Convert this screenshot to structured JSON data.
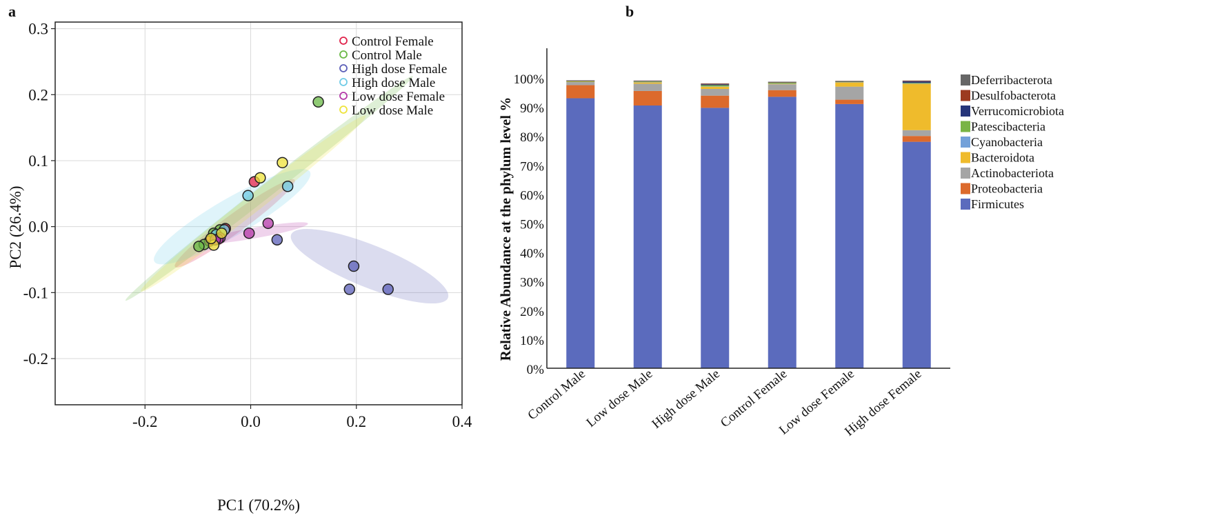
{
  "panels": {
    "a": "a",
    "b": "b"
  },
  "chart_data": [
    {
      "type": "scatter",
      "panel": "a",
      "xlabel": "PC1 (70.2%)",
      "ylabel": "PC2 (26.4%)",
      "xlim": [
        -0.37,
        0.4
      ],
      "ylim": [
        -0.27,
        0.31
      ],
      "xticks": [
        -0.2,
        0.0,
        0.2,
        0.4
      ],
      "xtick_labels": [
        "-0.2",
        "0.0",
        "0.2",
        "0.4"
      ],
      "yticks": [
        0.3,
        0.2,
        0.1,
        0.0,
        -0.1,
        -0.2
      ],
      "ytick_labels": [
        "0.3",
        "0.2",
        "0.1",
        "0.0",
        "-0.1",
        "-0.2"
      ],
      "grid": true,
      "legend_position": "top-right",
      "series": [
        {
          "name": "Control Female",
          "color": "#e0224a",
          "points": [
            [
              0.007,
              0.068
            ],
            [
              -0.048,
              -0.003
            ],
            [
              -0.078,
              -0.022
            ]
          ],
          "ellipse": {
            "cx": -0.03,
            "cy": 0.005,
            "rx": 0.14,
            "ry": 0.018,
            "angle": 36
          }
        },
        {
          "name": "Control Male",
          "color": "#6ab845",
          "points": [
            [
              0.128,
              0.189
            ],
            [
              -0.058,
              -0.005
            ],
            [
              -0.07,
              -0.01
            ],
            [
              -0.088,
              -0.027
            ],
            [
              -0.098,
              -0.03
            ]
          ],
          "ellipse": {
            "cx": 0.035,
            "cy": 0.058,
            "rx": 0.345,
            "ry": 0.013,
            "angle": 38
          }
        },
        {
          "name": "High dose Female",
          "color": "#5b5fb8",
          "points": [
            [
              0.195,
              -0.06
            ],
            [
              0.187,
              -0.095
            ],
            [
              0.26,
              -0.095
            ],
            [
              0.05,
              -0.02
            ]
          ],
          "ellipse": {
            "cx": 0.225,
            "cy": -0.06,
            "rx": 0.16,
            "ry": 0.04,
            "angle": -22
          }
        },
        {
          "name": "High dose Male",
          "color": "#6fcbe6",
          "points": [
            [
              0.07,
              0.061
            ],
            [
              -0.005,
              0.047
            ],
            [
              -0.05,
              -0.005
            ],
            [
              -0.065,
              -0.012
            ]
          ],
          "ellipse": {
            "cx": -0.035,
            "cy": 0.015,
            "rx": 0.17,
            "ry": 0.035,
            "angle": 30
          }
        },
        {
          "name": "Low dose Female",
          "color": "#b438a8",
          "points": [
            [
              0.033,
              0.005
            ],
            [
              -0.003,
              -0.01
            ],
            [
              -0.058,
              -0.017
            ],
            [
              -0.062,
              -0.019
            ],
            [
              -0.067,
              -0.02
            ]
          ],
          "ellipse": {
            "cx": 0.005,
            "cy": -0.01,
            "rx": 0.105,
            "ry": 0.01,
            "angle": 10
          }
        },
        {
          "name": "Low dose Male",
          "color": "#eee33a",
          "points": [
            [
              0.06,
              0.097
            ],
            [
              0.018,
              0.074
            ],
            [
              -0.07,
              -0.028
            ],
            [
              -0.075,
              -0.018
            ],
            [
              -0.055,
              -0.01
            ]
          ],
          "ellipse": {
            "cx": 0.005,
            "cy": 0.035,
            "rx": 0.27,
            "ry": 0.016,
            "angle": 38
          }
        }
      ]
    },
    {
      "type": "bar",
      "panel": "b",
      "stacked": true,
      "ylabel": "Relative Abundance at the phylum level %",
      "ylim": [
        0,
        100
      ],
      "yticks": [
        0,
        10,
        20,
        30,
        40,
        50,
        60,
        70,
        80,
        90,
        100
      ],
      "ytick_labels": [
        "0%",
        "10%",
        "20%",
        "30%",
        "40%",
        "50%",
        "60%",
        "70%",
        "80%",
        "90%",
        "100%"
      ],
      "categories": [
        "Control Male",
        "Low dose Male",
        "High dose Male",
        "Control Female",
        "Low dose Female",
        "High dose Female"
      ],
      "legend_position": "right",
      "series": [
        {
          "name": "Firmicutes",
          "color": "#5b6bbd",
          "values": [
            93.0,
            90.5,
            89.7,
            93.5,
            91.0,
            78.0
          ]
        },
        {
          "name": "Proteobacteria",
          "color": "#dc6a2c",
          "values": [
            4.5,
            5.0,
            4.2,
            2.3,
            1.5,
            2.0
          ]
        },
        {
          "name": "Actinobacteriota",
          "color": "#a5a5a5",
          "values": [
            1.1,
            2.5,
            2.3,
            2.0,
            4.5,
            2.0
          ]
        },
        {
          "name": "Bacteroidota",
          "color": "#efbb2c",
          "values": [
            0.1,
            0.5,
            0.8,
            0.2,
            1.5,
            16.0
          ]
        },
        {
          "name": "Cyanobacteria",
          "color": "#73a1d9",
          "values": [
            0.0,
            0.1,
            0.1,
            0.1,
            0.1,
            0.1
          ]
        },
        {
          "name": "Patescibacteria",
          "color": "#79b445",
          "values": [
            0.2,
            0.2,
            0.4,
            0.3,
            0.1,
            0.2
          ]
        },
        {
          "name": "Verrucomicrobiota",
          "color": "#26357a",
          "values": [
            0.1,
            0.1,
            0.3,
            0.1,
            0.1,
            0.5
          ]
        },
        {
          "name": "Desulfobacterota",
          "color": "#9c3a20",
          "values": [
            0.1,
            0.1,
            0.2,
            0.1,
            0.1,
            0.2
          ]
        },
        {
          "name": "Deferribacterota",
          "color": "#666666",
          "values": [
            0.1,
            0.1,
            0.1,
            0.1,
            0.1,
            0.1
          ]
        }
      ],
      "legend_order": [
        "Deferribacterota",
        "Desulfobacterota",
        "Verrucomicrobiota",
        "Patescibacteria",
        "Cyanobacteria",
        "Bacteroidota",
        "Actinobacteriota",
        "Proteobacteria",
        "Firmicutes"
      ]
    }
  ]
}
